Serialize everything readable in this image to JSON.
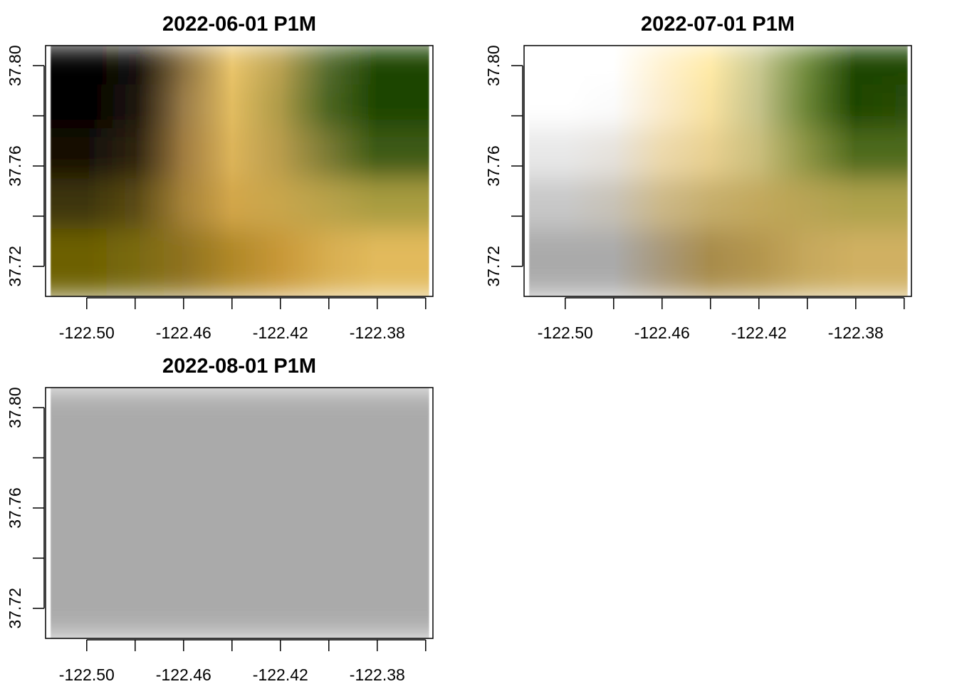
{
  "chart_data": [
    {
      "type": "heatmap",
      "title": "2022-06-01 P1M",
      "xlim": [
        -122.517,
        -122.357
      ],
      "ylim": [
        37.708,
        37.808
      ],
      "x_ticks": [
        -122.5,
        -122.48,
        -122.46,
        -122.44,
        -122.42,
        -122.4,
        -122.38,
        -122.36
      ],
      "x_tick_labels": [
        "-122.50",
        "",
        "-122.46",
        "",
        "-122.42",
        "",
        "-122.38",
        ""
      ],
      "y_ticks": [
        37.72,
        37.74,
        37.76,
        37.78,
        37.8
      ],
      "y_tick_labels": [
        "37.72",
        "",
        "37.76",
        "",
        "37.80"
      ],
      "raster_extent": {
        "x": [
          -122.515,
          -122.3585
        ],
        "y": [
          37.708,
          37.808
        ]
      },
      "columns_x": [
        -122.5,
        -122.48,
        -122.46,
        -122.44,
        -122.42,
        -122.4,
        -122.38,
        -122.36
      ],
      "rows_y": [
        37.8,
        37.785,
        37.765,
        37.745,
        37.725,
        37.715
      ],
      "colors": [
        [
          "#000000",
          "#14100a",
          "#8a7040",
          "#e9c46a",
          "#b8a050",
          "#556b2f",
          "#1e4500",
          "#1e4500"
        ],
        [
          "#000000",
          "#1e160c",
          "#9a7c48",
          "#e2bc60",
          "#ad9a48",
          "#4b6422",
          "#1e4500",
          "#1e4500"
        ],
        [
          "#140e06",
          "#2f2410",
          "#a07c40",
          "#dcb45a",
          "#b89c4c",
          "#7a7a34",
          "#3c5a14",
          "#3c5a14"
        ],
        [
          "#3e3608",
          "#5a4a14",
          "#a58238",
          "#d2a64a",
          "#c8a64c",
          "#b8a24a",
          "#a89c40",
          "#a89c40"
        ],
        [
          "#6d6000",
          "#7a6a10",
          "#8f7220",
          "#b08828",
          "#c89838",
          "#d8ae50",
          "#e2ba5c",
          "#e2ba5c"
        ],
        [
          "#6d6000",
          "#7a6a10",
          "#8f7220",
          "#b08828",
          "#c89838",
          "#d8ae50",
          "#e2ba5c",
          "#e2ba5c"
        ]
      ]
    },
    {
      "type": "heatmap",
      "title": "2022-07-01 P1M",
      "xlim": [
        -122.517,
        -122.357
      ],
      "ylim": [
        37.708,
        37.808
      ],
      "x_ticks": [
        -122.5,
        -122.48,
        -122.46,
        -122.44,
        -122.42,
        -122.4,
        -122.38,
        -122.36
      ],
      "x_tick_labels": [
        "-122.50",
        "",
        "-122.46",
        "",
        "-122.42",
        "",
        "-122.38",
        ""
      ],
      "y_ticks": [
        37.72,
        37.74,
        37.76,
        37.78,
        37.8
      ],
      "y_tick_labels": [
        "37.72",
        "",
        "37.76",
        "",
        "37.80"
      ],
      "raster_extent": {
        "x": [
          -122.515,
          -122.3585
        ],
        "y": [
          37.708,
          37.808
        ]
      },
      "columns_x": [
        -122.5,
        -122.48,
        -122.46,
        -122.44,
        -122.42,
        -122.4,
        -122.38,
        -122.36
      ],
      "rows_y": [
        37.8,
        37.785,
        37.765,
        37.745,
        37.725,
        37.715
      ],
      "colors": [
        [
          "#ffffff",
          "#ffffff",
          "#fff2d0",
          "#ffeaa6",
          "#c8c890",
          "#6f8a3c",
          "#1e4500",
          "#1e4500"
        ],
        [
          "#ffffff",
          "#fbfbfb",
          "#fbeccc",
          "#f8e2a0",
          "#c4c28a",
          "#6a8436",
          "#1e4500",
          "#2a4c08"
        ],
        [
          "#e8e8e8",
          "#e6e2dc",
          "#ecd9ac",
          "#e8d090",
          "#cabe7c",
          "#8c9444",
          "#4e6a1c",
          "#4e6a1c"
        ],
        [
          "#c8c8c8",
          "#c8c2b6",
          "#ccb888",
          "#c6ae6c",
          "#c2a85c",
          "#b8a454",
          "#aea24c",
          "#aea24c"
        ],
        [
          "#aaaaaa",
          "#aaaaaa",
          "#a8987a",
          "#a88c4c",
          "#b4964e",
          "#c6a85c",
          "#d0b062",
          "#d0b062"
        ],
        [
          "#aaaaaa",
          "#aaaaaa",
          "#a8987a",
          "#a88c4c",
          "#b4964e",
          "#c6a85c",
          "#d0b062",
          "#d0b062"
        ]
      ]
    },
    {
      "type": "heatmap",
      "title": "2022-08-01 P1M",
      "xlim": [
        -122.517,
        -122.357
      ],
      "ylim": [
        37.708,
        37.808
      ],
      "x_ticks": [
        -122.5,
        -122.48,
        -122.46,
        -122.44,
        -122.42,
        -122.4,
        -122.38,
        -122.36
      ],
      "x_tick_labels": [
        "-122.50",
        "",
        "-122.46",
        "",
        "-122.42",
        "",
        "-122.38",
        ""
      ],
      "y_ticks": [
        37.72,
        37.74,
        37.76,
        37.78,
        37.8
      ],
      "y_tick_labels": [
        "37.72",
        "",
        "37.76",
        "",
        "37.80"
      ],
      "raster_extent": {
        "x": [
          -122.515,
          -122.3585
        ],
        "y": [
          37.708,
          37.808
        ]
      },
      "columns_x": [
        -122.5,
        -122.48,
        -122.46,
        -122.44,
        -122.42,
        -122.4,
        -122.38,
        -122.36
      ],
      "rows_y": [
        37.8,
        37.785,
        37.765,
        37.745,
        37.725,
        37.715
      ],
      "colors": [
        [
          "#aaaaaa",
          "#aaaaaa",
          "#aaaaaa",
          "#aaaaaa",
          "#aaaaaa",
          "#aaaaaa",
          "#aaaaaa",
          "#aaaaaa"
        ],
        [
          "#aaaaaa",
          "#aaaaaa",
          "#aaaaaa",
          "#aaaaaa",
          "#aaaaaa",
          "#aaaaaa",
          "#aaaaaa",
          "#aaaaaa"
        ],
        [
          "#aaaaaa",
          "#aaaaaa",
          "#aaaaaa",
          "#aaaaaa",
          "#aaaaaa",
          "#aaaaaa",
          "#aaaaaa",
          "#aaaaaa"
        ],
        [
          "#aaaaaa",
          "#aaaaaa",
          "#aaaaaa",
          "#aaaaaa",
          "#aaaaaa",
          "#aaaaaa",
          "#aaaaaa",
          "#aaaaaa"
        ],
        [
          "#aaaaaa",
          "#aaaaaa",
          "#aaaaaa",
          "#aaaaaa",
          "#aaaaaa",
          "#aaaaaa",
          "#aaaaaa",
          "#aaaaaa"
        ],
        [
          "#aaaaaa",
          "#aaaaaa",
          "#aaaaaa",
          "#aaaaaa",
          "#aaaaaa",
          "#aaaaaa",
          "#aaaaaa",
          "#aaaaaa"
        ]
      ]
    }
  ]
}
